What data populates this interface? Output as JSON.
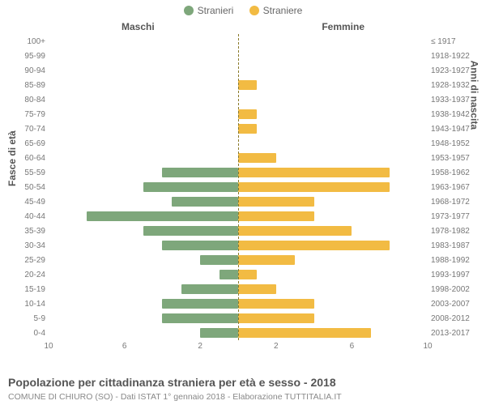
{
  "chart": {
    "type": "population-pyramid",
    "legend": [
      {
        "label": "Stranieri",
        "color": "#7ea77b"
      },
      {
        "label": "Straniere",
        "color": "#f2bb43"
      }
    ],
    "column_titles": {
      "left": "Maschi",
      "right": "Femmine"
    },
    "y_left_title": "Fasce di età",
    "y_right_title": "Anni di nascita",
    "x_max": 10,
    "x_ticks_left": [
      10,
      6,
      2
    ],
    "x_ticks_right": [
      2,
      6,
      10
    ],
    "bar_color_left": "#7ea77b",
    "bar_color_right": "#f2bb43",
    "plot_bg": "#ffffff",
    "center_line_color": "#8a7a2a",
    "rows": [
      {
        "age": "100+",
        "birth": "≤ 1917",
        "m": 0,
        "f": 0
      },
      {
        "age": "95-99",
        "birth": "1918-1922",
        "m": 0,
        "f": 0
      },
      {
        "age": "90-94",
        "birth": "1923-1927",
        "m": 0,
        "f": 0
      },
      {
        "age": "85-89",
        "birth": "1928-1932",
        "m": 0,
        "f": 1
      },
      {
        "age": "80-84",
        "birth": "1933-1937",
        "m": 0,
        "f": 0
      },
      {
        "age": "75-79",
        "birth": "1938-1942",
        "m": 0,
        "f": 1
      },
      {
        "age": "70-74",
        "birth": "1943-1947",
        "m": 0,
        "f": 1
      },
      {
        "age": "65-69",
        "birth": "1948-1952",
        "m": 0,
        "f": 0
      },
      {
        "age": "60-64",
        "birth": "1953-1957",
        "m": 0,
        "f": 2
      },
      {
        "age": "55-59",
        "birth": "1958-1962",
        "m": 4,
        "f": 8
      },
      {
        "age": "50-54",
        "birth": "1963-1967",
        "m": 5,
        "f": 8
      },
      {
        "age": "45-49",
        "birth": "1968-1972",
        "m": 3.5,
        "f": 4
      },
      {
        "age": "40-44",
        "birth": "1973-1977",
        "m": 8,
        "f": 4
      },
      {
        "age": "35-39",
        "birth": "1978-1982",
        "m": 5,
        "f": 6
      },
      {
        "age": "30-34",
        "birth": "1983-1987",
        "m": 4,
        "f": 8
      },
      {
        "age": "25-29",
        "birth": "1988-1992",
        "m": 2,
        "f": 3
      },
      {
        "age": "20-24",
        "birth": "1993-1997",
        "m": 1,
        "f": 1
      },
      {
        "age": "15-19",
        "birth": "1998-2002",
        "m": 3,
        "f": 2
      },
      {
        "age": "10-14",
        "birth": "2003-2007",
        "m": 4,
        "f": 4
      },
      {
        "age": "5-9",
        "birth": "2008-2012",
        "m": 4,
        "f": 4
      },
      {
        "age": "0-4",
        "birth": "2013-2017",
        "m": 2,
        "f": 7
      }
    ],
    "caption": "Popolazione per cittadinanza straniera per età e sesso - 2018",
    "subcaption": "COMUNE DI CHIURO (SO) - Dati ISTAT 1° gennaio 2018 - Elaborazione TUTTITALIA.IT"
  }
}
